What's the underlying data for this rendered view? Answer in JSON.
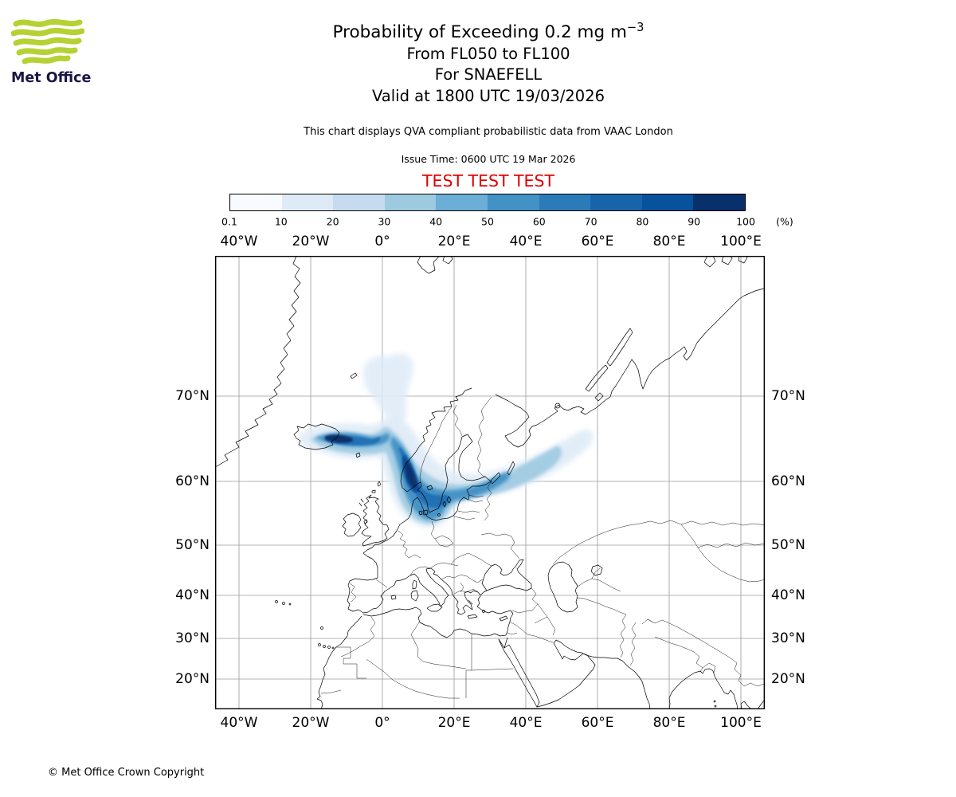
{
  "header": {
    "logo_text": "Met Office",
    "title_main": "Probability of Exceeding 0.2 mg m",
    "title_sup": "−3",
    "subtitle_flight_levels": "From FL050 to FL100",
    "subtitle_volcano": "For SNAEFELL",
    "subtitle_valid": "Valid at 1800 UTC 19/03/2026",
    "note": "This chart displays QVA compliant probabilistic data from VAAC London",
    "issue_time": "Issue Time: 0600 UTC 19 Mar 2026",
    "test_banner": "TEST TEST TEST",
    "test_banner_color": "#e00000",
    "logo_green": "#b4d234"
  },
  "colorbar": {
    "unit": "(%)",
    "tick_labels": [
      "0.1",
      "10",
      "20",
      "30",
      "40",
      "50",
      "60",
      "70",
      "80",
      "90",
      "100"
    ],
    "segment_colors": [
      "#f7fbff",
      "#deebf7",
      "#c6dbef",
      "#9ecae1",
      "#6baed6",
      "#4292c6",
      "#2b7bb9",
      "#1764ab",
      "#08519c",
      "#08306b"
    ]
  },
  "map_axes": {
    "x_tick_labels": [
      "40°W",
      "20°W",
      "0°",
      "20°E",
      "40°E",
      "60°E",
      "80°E",
      "100°E"
    ],
    "y_tick_labels": [
      "70°N",
      "60°N",
      "50°N",
      "40°N",
      "30°N",
      "20°N"
    ]
  },
  "footer": {
    "copyright": "© Met Office Crown Copyright"
  },
  "chart_data": {
    "type": "heatmap",
    "subtype": "volcanic-ash-probability-map",
    "quantity": "Probability of exceeding 0.2 mg m−3 ash concentration",
    "layer": "FL050 to FL100",
    "volcano": "SNAEFELL",
    "valid_time": "1800 UTC 19/03/2026",
    "issue_time": "0600 UTC 19 Mar 2026",
    "source_note": "QVA compliant probabilistic data from VAAC London",
    "levels_percent": [
      0.1,
      10,
      20,
      30,
      40,
      50,
      60,
      70,
      80,
      90,
      100
    ],
    "level_colors": [
      "#f7fbff",
      "#deebf7",
      "#c6dbef",
      "#9ecae1",
      "#6baed6",
      "#4292c6",
      "#2b7bb9",
      "#1764ab",
      "#08519c",
      "#08306b"
    ],
    "map_extent": {
      "lon_min": -47,
      "lon_max": 107,
      "lat_min": 12,
      "lat_max": 80
    },
    "grid": {
      "lon_step_deg": 20,
      "lat_step_deg": 10,
      "gridlines": true
    },
    "plume_features": [
      {
        "name": "source-streak",
        "approx_location": "64-67N, 24W-0E east of Iceland",
        "max_probability_percent": 100
      },
      {
        "name": "main-lobe",
        "approx_location": "56-68N, 0-15E over Norway / North Sea",
        "max_probability_percent": 90
      },
      {
        "name": "north-lobe",
        "approx_location": "70-75N, 8W-8E Norwegian Sea",
        "max_probability_percent": 20
      },
      {
        "name": "east-arm",
        "approx_location": "59-67N, 15-55E toward NW Russia",
        "max_probability_percent": 50
      }
    ]
  }
}
